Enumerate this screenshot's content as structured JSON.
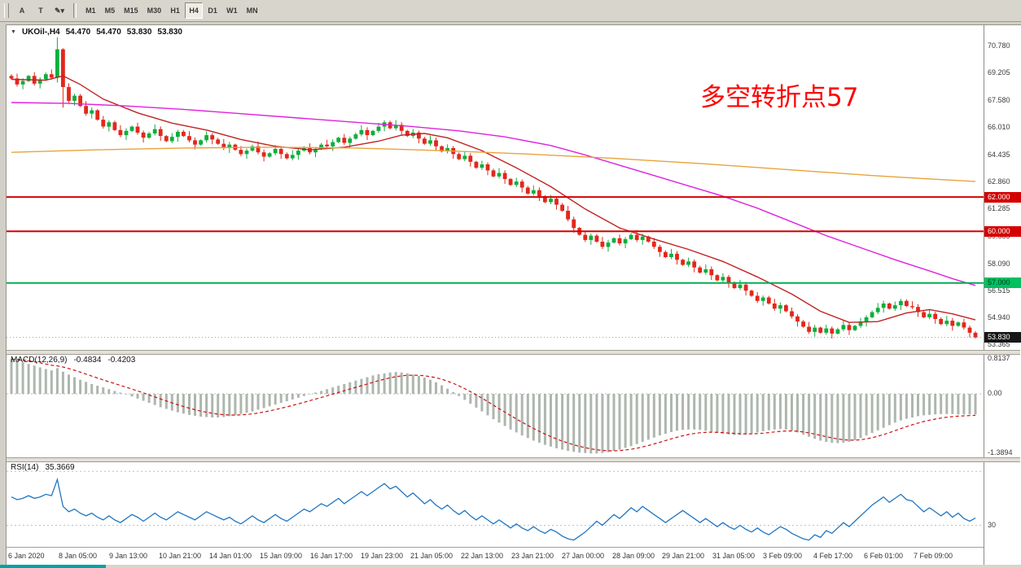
{
  "toolbar": {
    "tools": [
      {
        "name": "cursor-tool",
        "label": "A"
      },
      {
        "name": "text-tool",
        "label": "T"
      },
      {
        "name": "draw-tool",
        "label": "✎",
        "caret": "▾"
      }
    ],
    "timeframes": [
      "M1",
      "M5",
      "M15",
      "M30",
      "H1",
      "H4",
      "D1",
      "W1",
      "MN"
    ],
    "active_timeframe": "H4"
  },
  "symbol_header": {
    "collapse_icon": "▼",
    "title": "UKOil-,H4",
    "open": "54.470",
    "high": "54.470",
    "low": "53.830",
    "close": "53.830"
  },
  "annotation": {
    "text": "多空转折点57",
    "color": "#ff0000"
  },
  "macd_label": {
    "name": "MACD(12,26,9)",
    "main_value": "-0.4834",
    "signal_value": "-0.4203"
  },
  "rsi_label": {
    "name": "RSI(14)",
    "value": "35.3669"
  },
  "chart_data": {
    "type": "candlestick",
    "symbol": "UKOil-",
    "timeframe": "H4",
    "colors": {
      "up": "#0fae3c",
      "down": "#e3271c",
      "ma_fast": "#c22222",
      "ma_mid": "#dd22dd",
      "ma_slow": "#e8a33d",
      "macd_hist": "#aeb6ae",
      "macd_signal": "#cc1111",
      "rsi": "#1f76c2"
    },
    "y_axis": {
      "min": 53.1,
      "max": 72.0,
      "labels": [
        70.78,
        69.205,
        67.58,
        66.01,
        64.435,
        62.86,
        61.285,
        59.685,
        58.09,
        56.515,
        54.94,
        53.365
      ]
    },
    "x_axis": {
      "labels": [
        "6 Jan 2020",
        "8 Jan 05:00",
        "9 Jan 13:00",
        "10 Jan 21:00",
        "14 Jan 01:00",
        "15 Jan 09:00",
        "16 Jan 17:00",
        "19 Jan 23:00",
        "21 Jan 05:00",
        "22 Jan 13:00",
        "23 Jan 21:00",
        "27 Jan 00:00",
        "28 Jan 09:00",
        "29 Jan 21:00",
        "31 Jan 05:00",
        "3 Feb 09:00",
        "4 Feb 17:00",
        "6 Feb 01:00",
        "7 Feb 09:00"
      ]
    },
    "hlines": [
      {
        "price": 62.0,
        "color": "#d40000",
        "width": 2,
        "label": "62.000",
        "badge_bg": "#d40000",
        "badge_fg": "#ffffff"
      },
      {
        "price": 60.0,
        "color": "#d40000",
        "width": 2,
        "label": "60.000",
        "badge_bg": "#d40000",
        "badge_fg": "#ffffff"
      },
      {
        "price": 57.0,
        "color": "#00b050",
        "width": 2,
        "label": "57.000",
        "badge_bg": "#00c060",
        "badge_fg": "#00341c"
      },
      {
        "price": 53.83,
        "color": "#9a9a9a",
        "width": 1,
        "dash": "1 3",
        "label": "53.830",
        "badge_bg": "#161616",
        "badge_fg": "#ffffff"
      }
    ],
    "candles": {
      "closes": [
        68.9,
        68.55,
        68.75,
        69.05,
        68.6,
        68.85,
        69.15,
        68.95,
        70.6,
        68.4,
        67.6,
        67.9,
        67.3,
        66.85,
        67.05,
        66.5,
        66.1,
        66.35,
        65.9,
        65.6,
        65.85,
        66.1,
        65.75,
        65.45,
        65.7,
        65.95,
        65.55,
        65.25,
        65.5,
        65.8,
        65.55,
        65.3,
        65.05,
        65.3,
        65.6,
        65.35,
        65.1,
        64.85,
        65.05,
        64.75,
        64.5,
        64.7,
        64.95,
        64.6,
        64.35,
        64.55,
        64.8,
        64.5,
        64.25,
        64.45,
        64.7,
        64.9,
        64.6,
        64.8,
        65.05,
        64.95,
        65.2,
        65.45,
        65.15,
        65.4,
        65.65,
        65.9,
        65.6,
        65.85,
        66.1,
        66.35,
        66.0,
        66.2,
        65.85,
        65.55,
        65.75,
        65.4,
        65.1,
        65.3,
        64.95,
        64.65,
        64.85,
        64.5,
        64.2,
        64.4,
        64.05,
        63.7,
        63.9,
        63.55,
        63.2,
        63.4,
        63.05,
        62.7,
        62.9,
        62.55,
        62.2,
        62.4,
        62.05,
        61.7,
        61.9,
        61.55,
        61.2,
        60.7,
        60.2,
        59.8,
        59.5,
        59.75,
        59.4,
        59.1,
        59.35,
        59.6,
        59.3,
        59.55,
        59.8,
        59.5,
        59.7,
        59.4,
        59.1,
        58.8,
        58.5,
        58.7,
        58.35,
        58.05,
        58.25,
        57.9,
        57.6,
        57.8,
        57.45,
        57.15,
        57.35,
        57.0,
        56.7,
        56.9,
        56.55,
        56.25,
        55.95,
        56.15,
        55.8,
        55.5,
        55.7,
        55.35,
        55.05,
        54.75,
        54.45,
        54.15,
        54.4,
        54.1,
        54.35,
        54.05,
        54.3,
        54.55,
        54.25,
        54.5,
        54.75,
        55.0,
        55.3,
        55.55,
        55.8,
        55.5,
        55.7,
        55.95,
        55.65,
        55.6,
        55.3,
        55.0,
        55.2,
        54.9,
        54.6,
        54.8,
        54.5,
        54.7,
        54.4,
        54.1,
        53.83
      ],
      "wick_pattern": [
        0.1,
        0.28,
        0.16,
        0.06,
        0.22,
        0.12
      ],
      "overrides": {
        "8": {
          "h": 71.3
        },
        "9": {
          "l": 67.2
        }
      }
    },
    "moving_averages": [
      {
        "id": "ma-fast-line",
        "name": "MA fast",
        "color": "#c22222",
        "points": [
          [
            0,
            68.85
          ],
          [
            6,
            68.8
          ],
          [
            9,
            69.05
          ],
          [
            12,
            68.55
          ],
          [
            16,
            67.7
          ],
          [
            22,
            66.9
          ],
          [
            28,
            66.3
          ],
          [
            34,
            65.9
          ],
          [
            40,
            65.35
          ],
          [
            46,
            64.95
          ],
          [
            52,
            64.75
          ],
          [
            58,
            64.9
          ],
          [
            64,
            65.25
          ],
          [
            68,
            65.6
          ],
          [
            72,
            65.7
          ],
          [
            76,
            65.45
          ],
          [
            82,
            64.7
          ],
          [
            88,
            63.7
          ],
          [
            94,
            62.6
          ],
          [
            100,
            61.3
          ],
          [
            106,
            60.2
          ],
          [
            112,
            59.55
          ],
          [
            118,
            58.95
          ],
          [
            124,
            58.25
          ],
          [
            130,
            57.35
          ],
          [
            136,
            56.35
          ],
          [
            141,
            55.35
          ],
          [
            146,
            54.7
          ],
          [
            151,
            54.75
          ],
          [
            156,
            55.25
          ],
          [
            160,
            55.45
          ],
          [
            164,
            55.2
          ],
          [
            168,
            54.85
          ]
        ]
      },
      {
        "id": "ma-mid-line",
        "name": "MA mid",
        "color": "#dd22dd",
        "points": [
          [
            0,
            67.5
          ],
          [
            10,
            67.45
          ],
          [
            20,
            67.3
          ],
          [
            30,
            67.1
          ],
          [
            40,
            66.85
          ],
          [
            50,
            66.6
          ],
          [
            60,
            66.35
          ],
          [
            70,
            66.1
          ],
          [
            78,
            65.85
          ],
          [
            86,
            65.5
          ],
          [
            94,
            65.0
          ],
          [
            100,
            64.45
          ],
          [
            106,
            63.85
          ],
          [
            112,
            63.25
          ],
          [
            118,
            62.65
          ],
          [
            124,
            62.05
          ],
          [
            130,
            61.35
          ],
          [
            136,
            60.55
          ],
          [
            142,
            59.75
          ],
          [
            148,
            59.05
          ],
          [
            154,
            58.35
          ],
          [
            160,
            57.7
          ],
          [
            164,
            57.25
          ],
          [
            168,
            56.85
          ]
        ]
      },
      {
        "id": "ma-slow-line",
        "name": "MA slow",
        "color": "#e8a33d",
        "points": [
          [
            0,
            64.6
          ],
          [
            15,
            64.75
          ],
          [
            30,
            64.85
          ],
          [
            45,
            64.9
          ],
          [
            60,
            64.85
          ],
          [
            75,
            64.7
          ],
          [
            90,
            64.5
          ],
          [
            105,
            64.25
          ],
          [
            120,
            63.95
          ],
          [
            135,
            63.6
          ],
          [
            150,
            63.25
          ],
          [
            160,
            63.05
          ],
          [
            168,
            62.9
          ]
        ]
      }
    ],
    "macd": {
      "params": "12,26,9",
      "signal_period": 9,
      "scale_max": 0.95,
      "scale_min": -1.48,
      "axis_labels": [
        [
          "0.8137",
          0.8137
        ],
        [
          "0.00",
          0.0
        ],
        [
          "-1.3894",
          -1.3894
        ]
      ],
      "values": [
        0.81,
        0.78,
        0.74,
        0.7,
        0.66,
        0.62,
        0.58,
        0.55,
        0.6,
        0.52,
        0.45,
        0.39,
        0.33,
        0.28,
        0.23,
        0.19,
        0.15,
        0.11,
        0.07,
        0.03,
        -0.01,
        -0.06,
        -0.11,
        -0.16,
        -0.21,
        -0.26,
        -0.31,
        -0.35,
        -0.39,
        -0.43,
        -0.46,
        -0.49,
        -0.51,
        -0.53,
        -0.54,
        -0.55,
        -0.55,
        -0.54,
        -0.52,
        -0.5,
        -0.47,
        -0.44,
        -0.41,
        -0.37,
        -0.33,
        -0.29,
        -0.25,
        -0.21,
        -0.17,
        -0.13,
        -0.09,
        -0.05,
        -0.01,
        0.03,
        0.07,
        0.11,
        0.15,
        0.19,
        0.23,
        0.27,
        0.31,
        0.35,
        0.39,
        0.43,
        0.46,
        0.48,
        0.5,
        0.51,
        0.5,
        0.48,
        0.45,
        0.42,
        0.38,
        0.33,
        0.27,
        0.2,
        0.12,
        0.04,
        -0.05,
        -0.14,
        -0.23,
        -0.32,
        -0.41,
        -0.5,
        -0.59,
        -0.67,
        -0.75,
        -0.83,
        -0.9,
        -0.97,
        -1.03,
        -1.09,
        -1.14,
        -1.19,
        -1.23,
        -1.27,
        -1.3,
        -1.33,
        -1.35,
        -1.37,
        -1.38,
        -1.39,
        -1.39,
        -1.38,
        -1.36,
        -1.33,
        -1.3,
        -1.26,
        -1.22,
        -1.17,
        -1.12,
        -1.07,
        -1.02,
        -0.97,
        -0.93,
        -0.89,
        -0.86,
        -0.84,
        -0.83,
        -0.83,
        -0.84,
        -0.86,
        -0.88,
        -0.91,
        -0.93,
        -0.95,
        -0.96,
        -0.96,
        -0.95,
        -0.93,
        -0.9,
        -0.87,
        -0.85,
        -0.83,
        -0.82,
        -0.83,
        -0.86,
        -0.9,
        -0.95,
        -1.0,
        -1.05,
        -1.09,
        -1.12,
        -1.14,
        -1.15,
        -1.14,
        -1.12,
        -1.08,
        -1.03,
        -0.97,
        -0.91,
        -0.85,
        -0.79,
        -0.73,
        -0.67,
        -0.62,
        -0.58,
        -0.55,
        -0.52,
        -0.5,
        -0.49,
        -0.48,
        -0.47,
        -0.47,
        -0.47,
        -0.48,
        -0.48,
        -0.48,
        -0.48
      ]
    },
    "rsi": {
      "period": 14,
      "levels": [
        30,
        70
      ],
      "scale_max": 78,
      "scale_min": 14,
      "axis_labels": [
        [
          "30",
          30
        ]
      ],
      "values": [
        51,
        49,
        50,
        52,
        50,
        51,
        53,
        52,
        64,
        44,
        40,
        42,
        39,
        37,
        39,
        36,
        34,
        37,
        34,
        32,
        35,
        38,
        36,
        33,
        36,
        39,
        36,
        34,
        37,
        40,
        38,
        36,
        34,
        37,
        40,
        38,
        36,
        34,
        36,
        33,
        31,
        34,
        37,
        34,
        32,
        35,
        38,
        35,
        33,
        36,
        39,
        42,
        40,
        43,
        46,
        44,
        47,
        50,
        46,
        49,
        52,
        55,
        52,
        55,
        58,
        61,
        57,
        59,
        55,
        51,
        54,
        50,
        46,
        49,
        45,
        42,
        45,
        41,
        38,
        41,
        37,
        34,
        37,
        34,
        31,
        34,
        31,
        28,
        31,
        28,
        26,
        29,
        26,
        24,
        27,
        25,
        22,
        20,
        19,
        22,
        25,
        29,
        33,
        30,
        34,
        38,
        35,
        39,
        43,
        40,
        44,
        41,
        38,
        35,
        32,
        35,
        38,
        41,
        38,
        35,
        32,
        35,
        32,
        29,
        32,
        29,
        27,
        30,
        27,
        25,
        28,
        25,
        23,
        26,
        29,
        27,
        24,
        22,
        20,
        19,
        23,
        21,
        26,
        24,
        28,
        32,
        29,
        33,
        37,
        41,
        45,
        48,
        51,
        47,
        50,
        53,
        49,
        48,
        44,
        40,
        43,
        40,
        37,
        40,
        36,
        39,
        35,
        33,
        35.37
      ]
    }
  }
}
